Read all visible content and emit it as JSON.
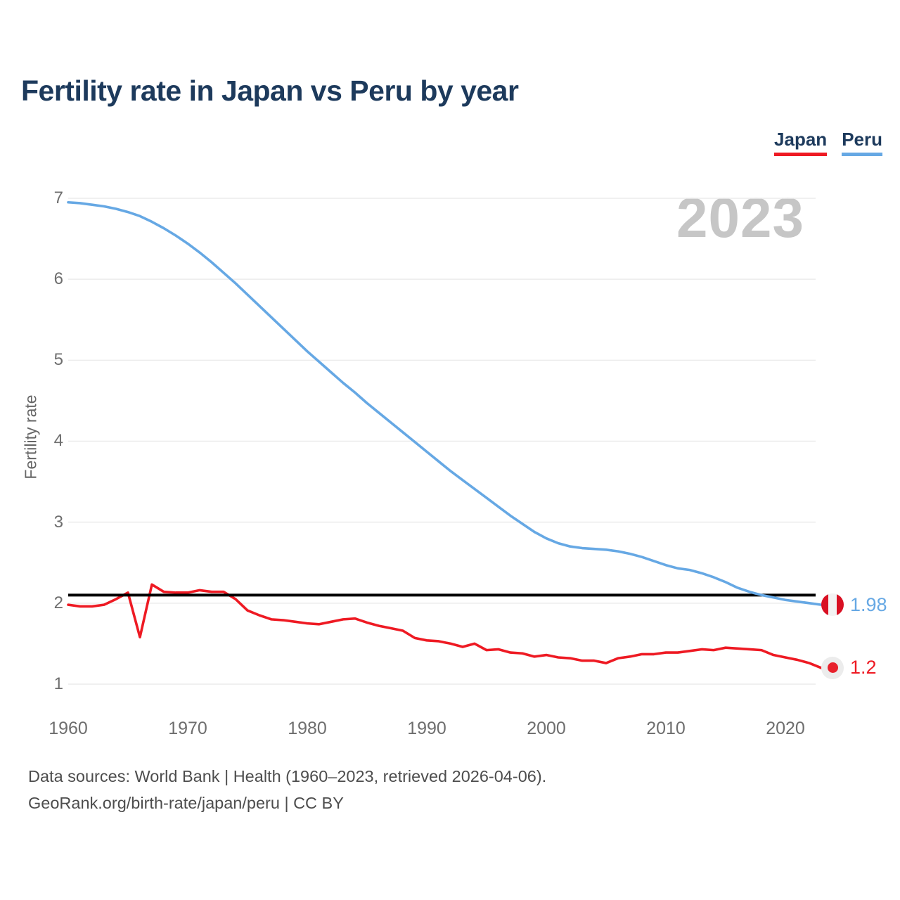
{
  "title": "Fertility rate in Japan vs Peru by year",
  "watermark": "2023",
  "y_axis_label": "Fertility rate",
  "legend": [
    {
      "label": "Japan",
      "color": "#ee1a23"
    },
    {
      "label": "Peru",
      "color": "#66a8e4"
    }
  ],
  "end_labels": [
    {
      "series": "Peru",
      "value": "1.98",
      "color": "#66a8e4",
      "flag": "peru-flag"
    },
    {
      "series": "Japan",
      "value": "1.2",
      "color": "#ee1a23",
      "flag": "japan-flag"
    }
  ],
  "footer": {
    "line1": "Data sources: World Bank | Health (1960–2023, retrieved 2026-04-06).",
    "line2": "GeoRank.org/birth-rate/japan/peru | CC BY"
  },
  "chart_data": {
    "type": "line",
    "title": "Fertility rate in Japan vs Peru by year",
    "xlabel": "",
    "ylabel": "Fertility rate",
    "xlim": [
      1960,
      2023
    ],
    "ylim": [
      1,
      7
    ],
    "xticks": [
      1960,
      1970,
      1980,
      1990,
      2000,
      2010,
      2020
    ],
    "yticks": [
      1,
      2,
      3,
      4,
      5,
      6,
      7
    ],
    "grid": "horizontal",
    "legend_position": "top-right",
    "reference_line": {
      "value": 2.1,
      "color": "#000000"
    },
    "x": [
      1960,
      1961,
      1962,
      1963,
      1964,
      1965,
      1966,
      1967,
      1968,
      1969,
      1970,
      1971,
      1972,
      1973,
      1974,
      1975,
      1976,
      1977,
      1978,
      1979,
      1980,
      1981,
      1982,
      1983,
      1984,
      1985,
      1986,
      1987,
      1988,
      1989,
      1990,
      1991,
      1992,
      1993,
      1994,
      1995,
      1996,
      1997,
      1998,
      1999,
      2000,
      2001,
      2002,
      2003,
      2004,
      2005,
      2006,
      2007,
      2008,
      2009,
      2010,
      2011,
      2012,
      2013,
      2014,
      2015,
      2016,
      2017,
      2018,
      2019,
      2020,
      2021,
      2022,
      2023
    ],
    "series": [
      {
        "name": "Japan",
        "color": "#ee1a23",
        "end_value": 1.2,
        "values": [
          1.98,
          1.96,
          1.96,
          1.98,
          2.05,
          2.13,
          1.58,
          2.23,
          2.14,
          2.13,
          2.13,
          2.16,
          2.14,
          2.14,
          2.05,
          1.91,
          1.85,
          1.8,
          1.79,
          1.77,
          1.75,
          1.74,
          1.77,
          1.8,
          1.81,
          1.76,
          1.72,
          1.69,
          1.66,
          1.57,
          1.54,
          1.53,
          1.5,
          1.46,
          1.5,
          1.42,
          1.43,
          1.39,
          1.38,
          1.34,
          1.36,
          1.33,
          1.32,
          1.29,
          1.29,
          1.26,
          1.32,
          1.34,
          1.37,
          1.37,
          1.39,
          1.39,
          1.41,
          1.43,
          1.42,
          1.45,
          1.44,
          1.43,
          1.42,
          1.36,
          1.33,
          1.3,
          1.26,
          1.2
        ]
      },
      {
        "name": "Peru",
        "color": "#66a8e4",
        "end_value": 1.98,
        "values": [
          6.95,
          6.94,
          6.92,
          6.9,
          6.87,
          6.83,
          6.78,
          6.71,
          6.63,
          6.54,
          6.44,
          6.33,
          6.21,
          6.08,
          5.95,
          5.81,
          5.67,
          5.53,
          5.39,
          5.25,
          5.11,
          4.98,
          4.85,
          4.72,
          4.6,
          4.47,
          4.35,
          4.23,
          4.11,
          3.99,
          3.87,
          3.75,
          3.63,
          3.52,
          3.41,
          3.3,
          3.19,
          3.08,
          2.98,
          2.88,
          2.8,
          2.74,
          2.7,
          2.68,
          2.67,
          2.66,
          2.64,
          2.61,
          2.57,
          2.52,
          2.47,
          2.43,
          2.41,
          2.37,
          2.32,
          2.26,
          2.19,
          2.14,
          2.1,
          2.07,
          2.04,
          2.02,
          2.0,
          1.98
        ]
      }
    ]
  }
}
